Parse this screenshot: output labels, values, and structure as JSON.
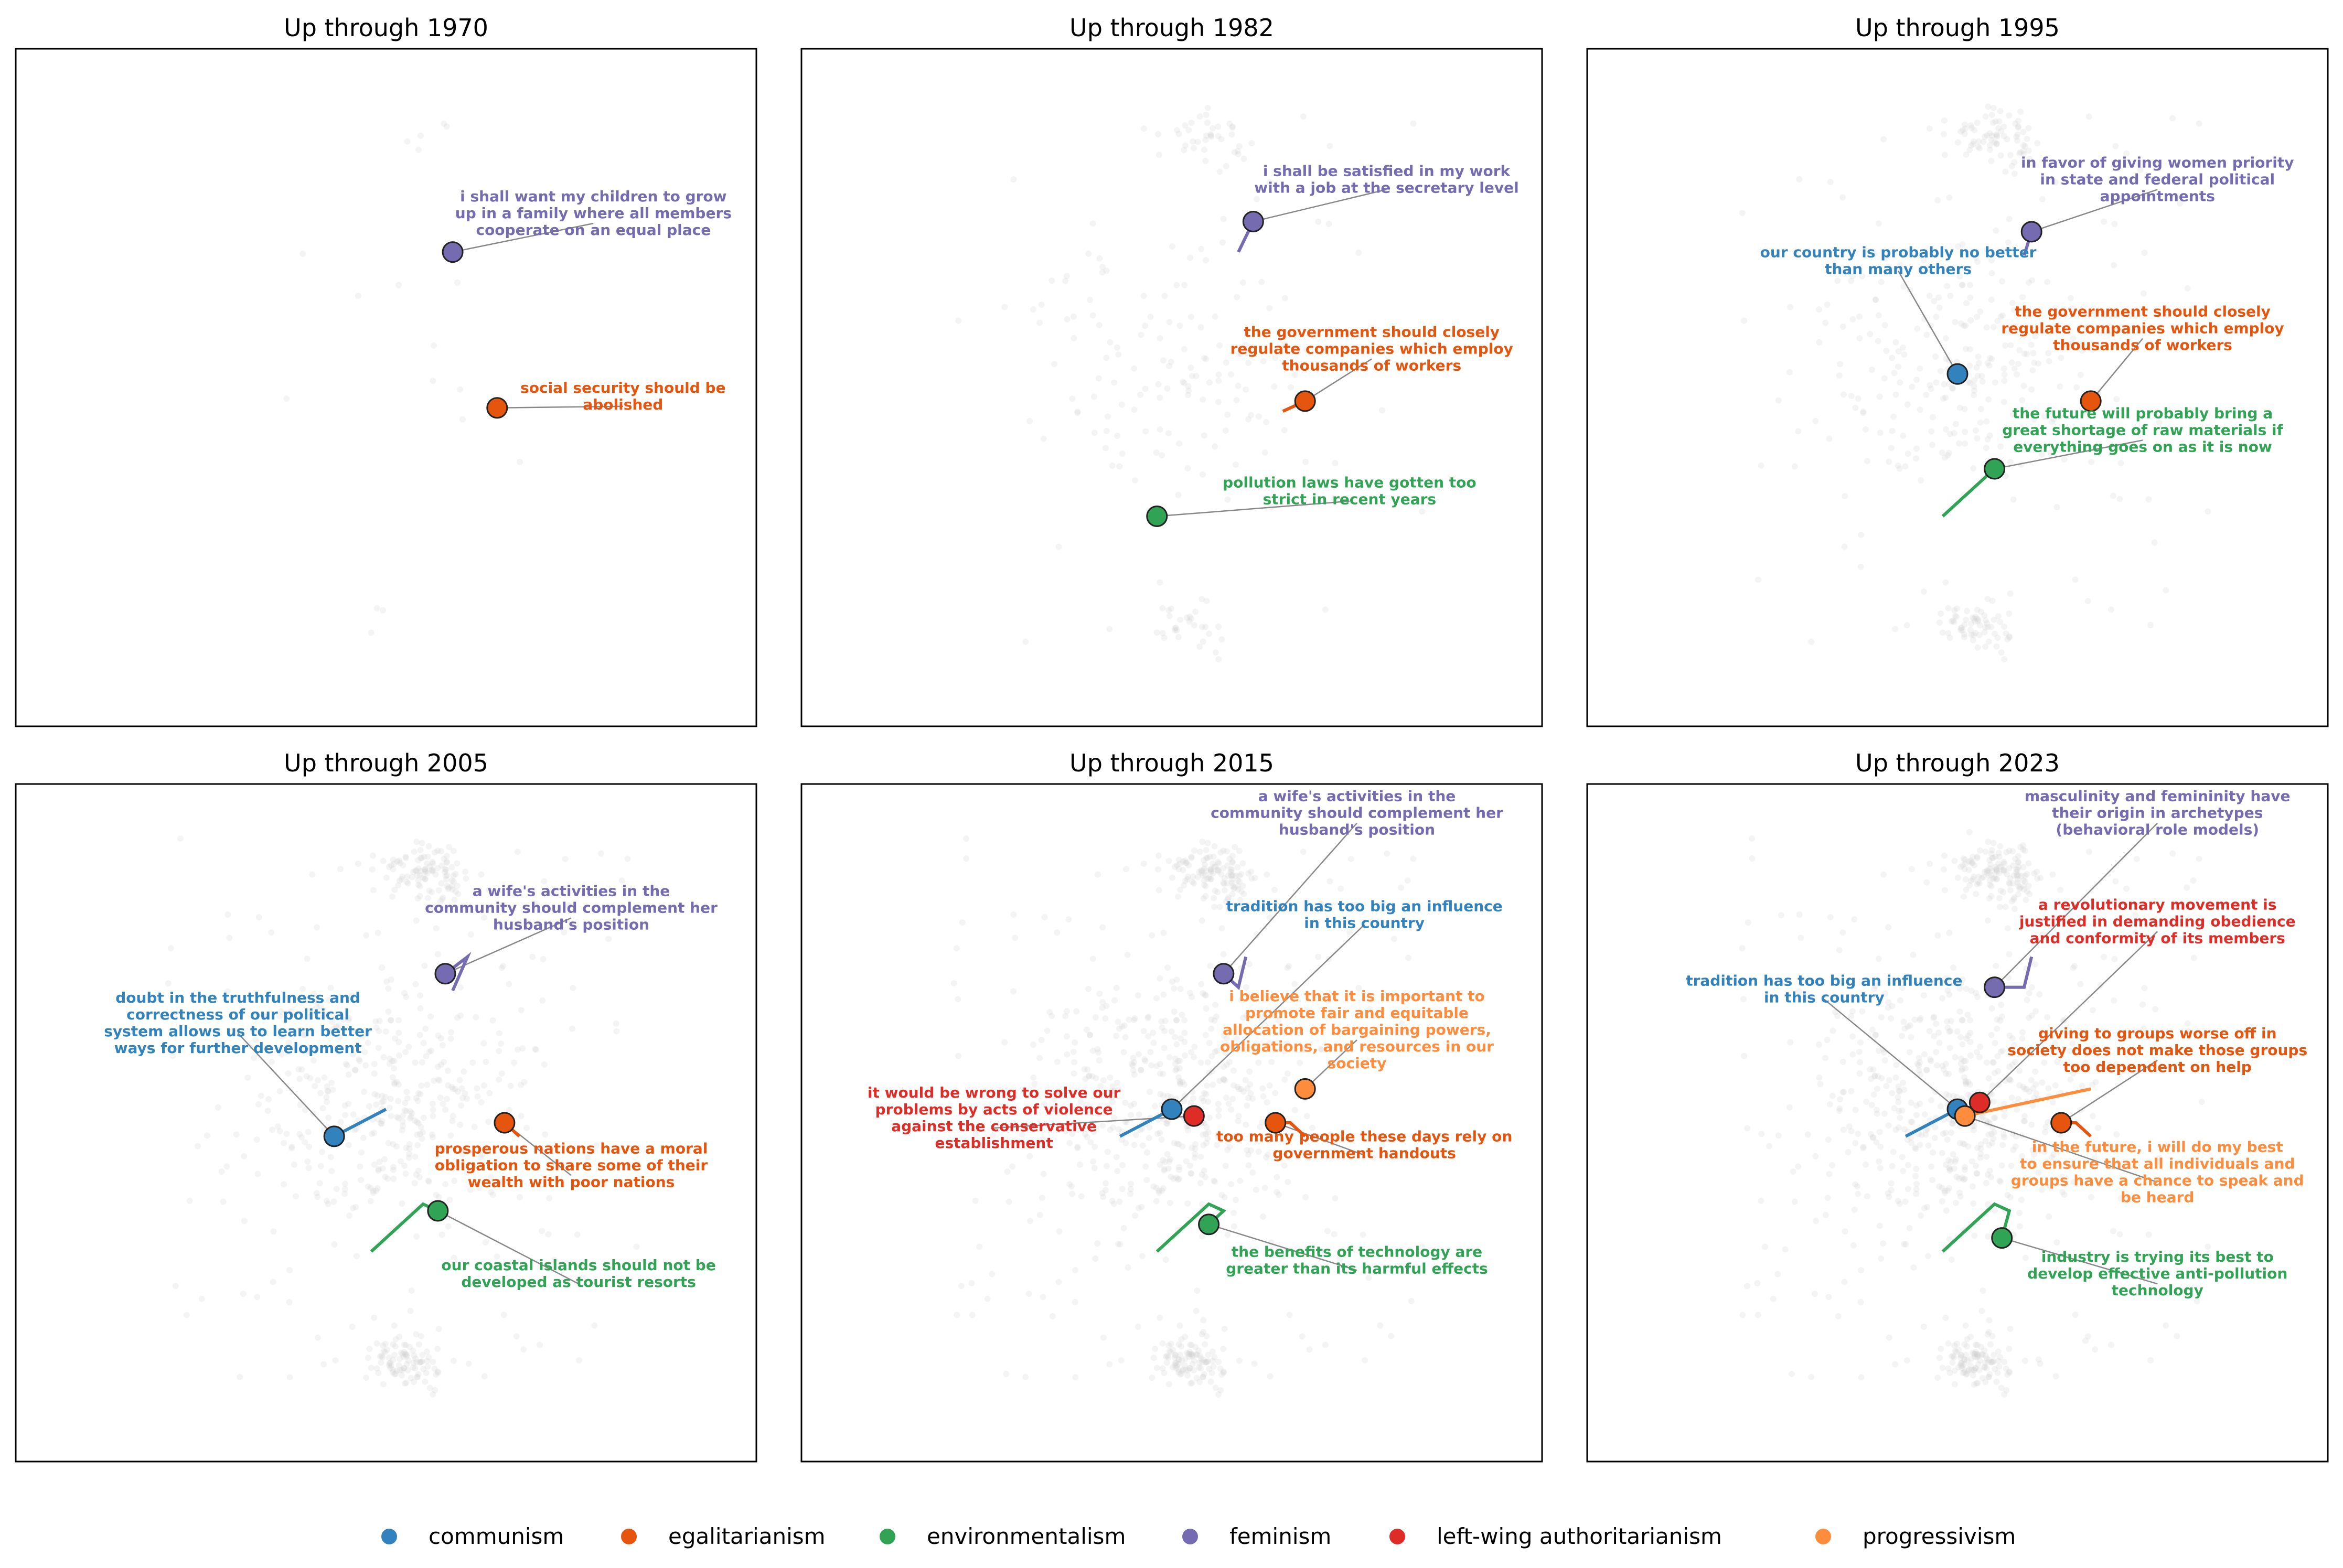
{
  "legend": [
    {
      "name": "communism",
      "color": "#3182bd"
    },
    {
      "name": "egalitarianism",
      "color": "#e6550d"
    },
    {
      "name": "environmentalism",
      "color": "#31a354"
    },
    {
      "name": "feminism",
      "color": "#756bb1"
    },
    {
      "name": "left-wing authoritarianism",
      "color": "#de2d26"
    },
    {
      "name": "progressivism",
      "color": "#fd8d3c"
    }
  ],
  "chart_data": [
    {
      "type": "scatter",
      "title": "Up through 1970",
      "background_density": 0.02,
      "points": [
        {
          "series": "feminism",
          "x": 0.59,
          "y": 0.7,
          "trail": [
            [
              0.59,
              0.7
            ]
          ],
          "label": "i shall want my children to grow up in a family where all members cooperate on an equal place",
          "label_x": 0.78,
          "label_y": 0.75
        },
        {
          "series": "egalitarianism",
          "x": 0.65,
          "y": 0.47,
          "trail": [
            [
              0.65,
              0.47
            ]
          ],
          "label": "social security should be abolished",
          "label_x": 0.82,
          "label_y": 0.48
        }
      ]
    },
    {
      "type": "scatter",
      "title": "Up through 1982",
      "background_density": 0.25,
      "points": [
        {
          "series": "feminism",
          "x": 0.61,
          "y": 0.745,
          "trail": [
            [
              0.59,
              0.7
            ],
            [
              0.61,
              0.745
            ]
          ],
          "label": "i shall be satisfied in my work with a job at the secretary level",
          "label_x": 0.79,
          "label_y": 0.8
        },
        {
          "series": "egalitarianism",
          "x": 0.68,
          "y": 0.48,
          "trail": [
            [
              0.65,
              0.465
            ],
            [
              0.68,
              0.48
            ]
          ],
          "label": "the government should closely regulate companies which employ thousands of workers",
          "label_x": 0.77,
          "label_y": 0.55
        },
        {
          "series": "environmentalism",
          "x": 0.48,
          "y": 0.31,
          "trail": [
            [
              0.48,
              0.31
            ]
          ],
          "label": "pollution laws have gotten too strict in recent years",
          "label_x": 0.74,
          "label_y": 0.34
        }
      ]
    },
    {
      "type": "scatter",
      "title": "Up through 1995",
      "background_density": 0.5,
      "points": [
        {
          "series": "feminism",
          "x": 0.6,
          "y": 0.73,
          "trail": [
            [
              0.59,
              0.695
            ],
            [
              0.6,
              0.73
            ]
          ],
          "label": "in favor of giving women priority in state and federal political appointments",
          "label_x": 0.77,
          "label_y": 0.8
        },
        {
          "series": "communism",
          "x": 0.5,
          "y": 0.52,
          "trail": [
            [
              0.5,
              0.52
            ]
          ],
          "label": "our country is probably no better than many others",
          "label_x": 0.42,
          "label_y": 0.68
        },
        {
          "series": "egalitarianism",
          "x": 0.68,
          "y": 0.48,
          "trail": [
            [
              0.68,
              0.48
            ]
          ],
          "label": "the government should closely regulate companies which employ thousands of workers",
          "label_x": 0.75,
          "label_y": 0.58
        },
        {
          "series": "environmentalism",
          "x": 0.55,
          "y": 0.38,
          "trail": [
            [
              0.48,
              0.31
            ],
            [
              0.55,
              0.38
            ]
          ],
          "label": "the future will probably bring a great shortage of raw materials if everything goes on as it is now",
          "label_x": 0.75,
          "label_y": 0.43
        }
      ]
    },
    {
      "type": "scatter",
      "title": "Up through 2005",
      "background_density": 0.75,
      "points": [
        {
          "series": "feminism",
          "x": 0.58,
          "y": 0.72,
          "trail": [
            [
              0.59,
              0.695
            ],
            [
              0.61,
              0.745
            ],
            [
              0.58,
              0.72
            ]
          ],
          "label": "a wife's activities in the community should complement her husband's position",
          "label_x": 0.75,
          "label_y": 0.81
        },
        {
          "series": "communism",
          "x": 0.43,
          "y": 0.48,
          "trail": [
            [
              0.5,
              0.52
            ],
            [
              0.43,
              0.48
            ]
          ],
          "label": "doubt in the truthfulness and correctness of our political system allows us to learn better ways for further development",
          "label_x": 0.3,
          "label_y": 0.64
        },
        {
          "series": "egalitarianism",
          "x": 0.66,
          "y": 0.5,
          "trail": [
            [
              0.68,
              0.48
            ],
            [
              0.66,
              0.5
            ]
          ],
          "label": "prosperous nations have a moral obligation to share some of their wealth with poor nations",
          "label_x": 0.75,
          "label_y": 0.43
        },
        {
          "series": "environmentalism",
          "x": 0.57,
          "y": 0.37,
          "trail": [
            [
              0.48,
              0.31
            ],
            [
              0.55,
              0.38
            ],
            [
              0.57,
              0.37
            ]
          ],
          "label": "our coastal islands should not be developed as tourist resorts",
          "label_x": 0.76,
          "label_y": 0.27
        }
      ]
    },
    {
      "type": "scatter",
      "title": "Up through 2015",
      "background_density": 0.9,
      "points": [
        {
          "series": "feminism",
          "x": 0.57,
          "y": 0.72,
          "trail": [
            [
              0.6,
              0.745
            ],
            [
              0.59,
              0.7
            ],
            [
              0.57,
              0.72
            ]
          ],
          "label": "a wife's activities in the community should complement her husband's position",
          "label_x": 0.75,
          "label_y": 0.95
        },
        {
          "series": "communism",
          "x": 0.5,
          "y": 0.52,
          "trail": [
            [
              0.43,
              0.48
            ],
            [
              0.5,
              0.52
            ]
          ],
          "label": "tradition has too big an influence in this country",
          "label_x": 0.76,
          "label_y": 0.8
        },
        {
          "series": "left-wing authoritarianism",
          "x": 0.53,
          "y": 0.51,
          "trail": [
            [
              0.53,
              0.51
            ]
          ],
          "label": "it would be wrong to solve our problems by acts of violence against the conservative establishment",
          "label_x": 0.26,
          "label_y": 0.5
        },
        {
          "series": "progressivism",
          "x": 0.68,
          "y": 0.55,
          "trail": [
            [
              0.68,
              0.55
            ]
          ],
          "label": "i believe that it is important to promote fair and equitable allocation of bargaining powers, obligations, and resources in our society",
          "label_x": 0.75,
          "label_y": 0.63
        },
        {
          "series": "egalitarianism",
          "x": 0.64,
          "y": 0.5,
          "trail": [
            [
              0.68,
              0.48
            ],
            [
              0.66,
              0.5
            ],
            [
              0.64,
              0.5
            ]
          ],
          "label": "too many people these days rely on government handouts",
          "label_x": 0.76,
          "label_y": 0.46
        },
        {
          "series": "environmentalism",
          "x": 0.55,
          "y": 0.35,
          "trail": [
            [
              0.48,
              0.31
            ],
            [
              0.55,
              0.38
            ],
            [
              0.57,
              0.37
            ],
            [
              0.55,
              0.35
            ]
          ],
          "label": "the benefits of technology are greater than its harmful effects",
          "label_x": 0.75,
          "label_y": 0.29
        }
      ]
    },
    {
      "type": "scatter",
      "title": "Up through 2023",
      "background_density": 1.0,
      "points": [
        {
          "series": "feminism",
          "x": 0.55,
          "y": 0.7,
          "trail": [
            [
              0.6,
              0.745
            ],
            [
              0.59,
              0.7
            ],
            [
              0.55,
              0.7
            ]
          ],
          "label": "masculinity and femininity have their origin in archetypes (behavioral role models)",
          "label_x": 0.77,
          "label_y": 0.95
        },
        {
          "series": "left-wing authoritarianism",
          "x": 0.53,
          "y": 0.53,
          "trail": [
            [
              0.53,
              0.53
            ]
          ],
          "label": "a revolutionary movement is justified in demanding obedience and conformity of its members",
          "label_x": 0.77,
          "label_y": 0.79
        },
        {
          "series": "communism",
          "x": 0.5,
          "y": 0.52,
          "trail": [
            [
              0.43,
              0.48
            ],
            [
              0.5,
              0.52
            ]
          ],
          "label": "tradition has too big an influence in this country",
          "label_x": 0.32,
          "label_y": 0.69
        },
        {
          "series": "egalitarianism",
          "x": 0.64,
          "y": 0.5,
          "trail": [
            [
              0.68,
              0.48
            ],
            [
              0.66,
              0.5
            ],
            [
              0.64,
              0.5
            ]
          ],
          "label": "giving to groups worse off in society does not make those groups too dependent on help",
          "label_x": 0.77,
          "label_y": 0.6
        },
        {
          "series": "progressivism",
          "x": 0.51,
          "y": 0.51,
          "trail": [
            [
              0.68,
              0.55
            ],
            [
              0.51,
              0.51
            ]
          ],
          "label": "in the future, i will do my best to ensure that all individuals and groups have a chance to speak and be heard",
          "label_x": 0.77,
          "label_y": 0.42
        },
        {
          "series": "environmentalism",
          "x": 0.56,
          "y": 0.33,
          "trail": [
            [
              0.48,
              0.31
            ],
            [
              0.55,
              0.38
            ],
            [
              0.57,
              0.37
            ],
            [
              0.56,
              0.33
            ]
          ],
          "label": "industry is trying its best to develop effective anti-pollution technology",
          "label_x": 0.77,
          "label_y": 0.27
        }
      ]
    }
  ]
}
